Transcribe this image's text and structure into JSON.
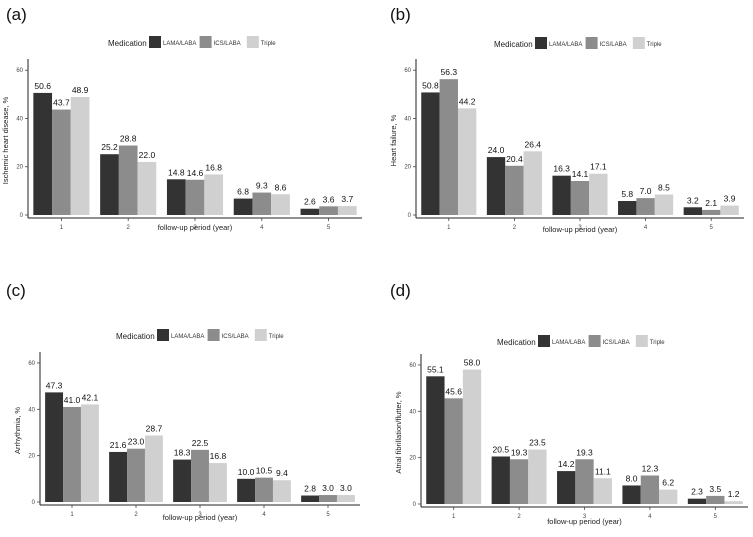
{
  "series_colors": [
    "#333333",
    "#8c8c8c",
    "#d0d0d0"
  ],
  "chart_data": [
    {
      "type": "bar",
      "panel_label": "(a)",
      "categories": [
        "1",
        "2",
        "3",
        "4",
        "5"
      ],
      "xlabel": "follow-up period (year)",
      "ylabel": "Ischemic heart disease, %",
      "ylim": [
        0,
        63
      ],
      "yticks": [
        "0",
        "20",
        "40",
        "60"
      ],
      "legend_title": "Medication",
      "series": [
        {
          "name": "LAMA/LABA",
          "values": [
            50.6,
            25.2,
            14.8,
            6.8,
            2.6
          ],
          "labels": [
            "50.6",
            "25.2",
            "14.8",
            "6.8",
            "2.6"
          ]
        },
        {
          "name": "ICS/LABA",
          "values": [
            43.7,
            28.8,
            14.6,
            9.3,
            3.6
          ],
          "labels": [
            "43.7",
            "28.8",
            "14.6",
            "9.3",
            "3.6"
          ]
        },
        {
          "name": "Triple",
          "values": [
            48.9,
            22.0,
            16.8,
            8.6,
            3.7
          ],
          "labels": [
            "48.9",
            "22.0",
            "16.8",
            "8.6",
            "3.7"
          ]
        }
      ]
    },
    {
      "type": "bar",
      "panel_label": "(b)",
      "categories": [
        "1",
        "2",
        "3",
        "4",
        "5"
      ],
      "xlabel": "follow-up period (year)",
      "ylabel": "Heart failure, %",
      "ylim": [
        0,
        63
      ],
      "yticks": [
        "0",
        "20",
        "40",
        "60"
      ],
      "legend_title": "Medication",
      "series": [
        {
          "name": "LAMA/LABA",
          "values": [
            50.8,
            24.0,
            16.3,
            5.8,
            3.2
          ],
          "labels": [
            "50.8",
            "24.0",
            "16.3",
            "5.8",
            "3.2"
          ]
        },
        {
          "name": "ICS/LABA",
          "values": [
            56.3,
            20.4,
            14.1,
            7.0,
            2.1
          ],
          "labels": [
            "56.3",
            "20.4",
            "14.1",
            "7.0",
            "2.1"
          ]
        },
        {
          "name": "Triple",
          "values": [
            44.2,
            26.4,
            17.1,
            8.5,
            3.9
          ],
          "labels": [
            "44.2",
            "26.4",
            "17.1",
            "8.5",
            "3.9"
          ]
        }
      ]
    },
    {
      "type": "bar",
      "panel_label": "(c)",
      "categories": [
        "1",
        "2",
        "3",
        "4",
        "5"
      ],
      "xlabel": "follow-up period (year)",
      "ylabel": "Arrhythmia, %",
      "ylim": [
        0,
        63
      ],
      "yticks": [
        "0",
        "20",
        "40",
        "60"
      ],
      "legend_title": "Medication",
      "series": [
        {
          "name": "LAMA/LABA",
          "values": [
            47.3,
            21.6,
            18.3,
            10.0,
            2.8
          ],
          "labels": [
            "47.3",
            "21.6",
            "18.3",
            "10.0",
            "2.8"
          ]
        },
        {
          "name": "ICS/LABA",
          "values": [
            41.0,
            23.0,
            22.5,
            10.5,
            3.0
          ],
          "labels": [
            "41.0",
            "23.0",
            "22.5",
            "10.5",
            "3.0"
          ]
        },
        {
          "name": "Triple",
          "values": [
            42.1,
            28.7,
            16.8,
            9.4,
            3.0
          ],
          "labels": [
            "42.1",
            "28.7",
            "16.8",
            "9.4",
            "3.0"
          ]
        }
      ]
    },
    {
      "type": "bar",
      "panel_label": "(d)",
      "categories": [
        "1",
        "2",
        "3",
        "4",
        "5"
      ],
      "xlabel": "follow-up period (year)",
      "ylabel": "Atrial fibrillation/flutter, %",
      "ylim": [
        0,
        63
      ],
      "yticks": [
        "0",
        "20",
        "40",
        "60"
      ],
      "legend_title": "Medication",
      "series": [
        {
          "name": "LAMA/LABA",
          "values": [
            55.1,
            20.5,
            14.2,
            8.0,
            2.3
          ],
          "labels": [
            "55.1",
            "20.5",
            "14.2",
            "8.0",
            "2.3"
          ]
        },
        {
          "name": "ICS/LABA",
          "values": [
            45.6,
            19.3,
            19.3,
            12.3,
            3.5
          ],
          "labels": [
            "45.6",
            "19.3",
            "19.3",
            "12.3",
            "3.5"
          ]
        },
        {
          "name": "Triple",
          "values": [
            58.0,
            23.5,
            11.1,
            6.2,
            1.2
          ],
          "labels": [
            "58.0",
            "23.5",
            "11.1",
            "6.2",
            "1.2"
          ]
        }
      ]
    }
  ]
}
